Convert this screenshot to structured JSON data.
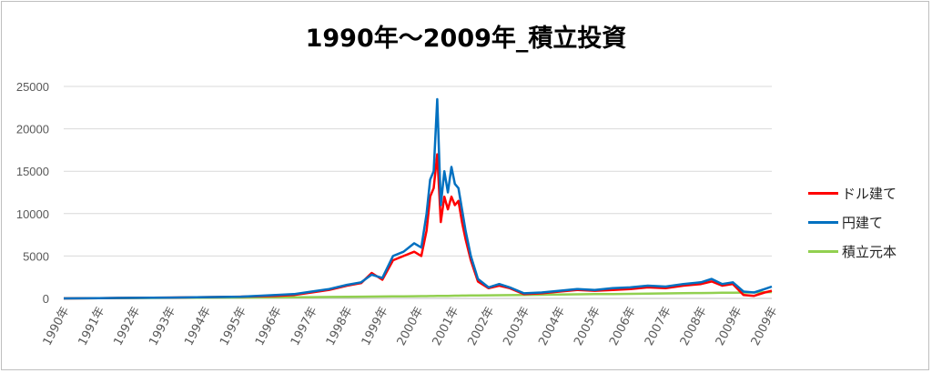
{
  "chart_data": {
    "type": "line",
    "title": "1990年～2009年_積立投資",
    "xlabel": "",
    "ylabel": "",
    "ylim": [
      0,
      25000
    ],
    "yticks": [
      0,
      5000,
      10000,
      15000,
      20000,
      25000
    ],
    "ytick_labels": [
      "0",
      "5000",
      "10000",
      "15000",
      "20000",
      "25000"
    ],
    "x_categories": [
      "1990年",
      "1991年",
      "1992年",
      "1993年",
      "1994年",
      "1995年",
      "1996年",
      "1997年",
      "1998年",
      "1999年",
      "2000年",
      "2001年",
      "2002年",
      "2003年",
      "2004年",
      "2005年",
      "2006年",
      "2007年",
      "2008年",
      "2009年",
      "2009年"
    ],
    "grid": true,
    "legend_position": "right",
    "x": [
      1990.0,
      1991.0,
      1992.0,
      1993.0,
      1994.0,
      1995.0,
      1996.0,
      1996.5,
      1997.0,
      1997.5,
      1998.0,
      1998.4,
      1998.7,
      1999.0,
      1999.3,
      1999.6,
      1999.9,
      2000.1,
      2000.25,
      2000.35,
      2000.45,
      2000.55,
      2000.65,
      2000.75,
      2000.85,
      2000.95,
      2001.05,
      2001.15,
      2001.25,
      2001.35,
      2001.5,
      2001.7,
      2002.0,
      2002.3,
      2002.6,
      2003.0,
      2003.5,
      2004.0,
      2004.5,
      2005.0,
      2005.5,
      2006.0,
      2006.5,
      2007.0,
      2007.5,
      2008.0,
      2008.3,
      2008.6,
      2008.9,
      2009.2,
      2009.5,
      2009.8,
      2010.0
    ],
    "series": [
      {
        "name": "ドル建て",
        "color": "#ff0000",
        "values": [
          0,
          30,
          60,
          100,
          150,
          200,
          300,
          400,
          700,
          1000,
          1500,
          1800,
          3000,
          2200,
          4500,
          5000,
          5500,
          5000,
          8000,
          12000,
          13000,
          17000,
          9000,
          12000,
          10500,
          12000,
          11000,
          11500,
          9000,
          7000,
          4500,
          2000,
          1200,
          1500,
          1200,
          500,
          600,
          800,
          1000,
          900,
          1000,
          1100,
          1300,
          1200,
          1500,
          1700,
          2000,
          1500,
          1700,
          400,
          300,
          700,
          900
        ]
      },
      {
        "name": "円建て",
        "color": "#0070c0",
        "values": [
          0,
          30,
          60,
          100,
          150,
          200,
          400,
          500,
          800,
          1100,
          1600,
          1900,
          2800,
          2400,
          5000,
          5500,
          6500,
          6000,
          10000,
          14000,
          15000,
          23500,
          11000,
          15000,
          12500,
          15500,
          13500,
          13000,
          10500,
          8000,
          5000,
          2300,
          1300,
          1700,
          1300,
          600,
          700,
          900,
          1100,
          1000,
          1200,
          1300,
          1500,
          1400,
          1700,
          1900,
          2300,
          1700,
          1900,
          800,
          700,
          1100,
          1400
        ]
      },
      {
        "name": "積立元本",
        "color": "#92d050",
        "values": [
          0,
          20,
          40,
          60,
          80,
          100,
          120,
          130,
          150,
          170,
          190,
          200,
          210,
          220,
          240,
          250,
          260,
          270,
          270,
          280,
          280,
          290,
          290,
          300,
          300,
          310,
          320,
          320,
          330,
          330,
          340,
          350,
          360,
          380,
          390,
          410,
          430,
          460,
          480,
          500,
          520,
          540,
          570,
          590,
          610,
          630,
          640,
          660,
          670,
          690,
          710,
          730,
          750
        ]
      }
    ]
  }
}
